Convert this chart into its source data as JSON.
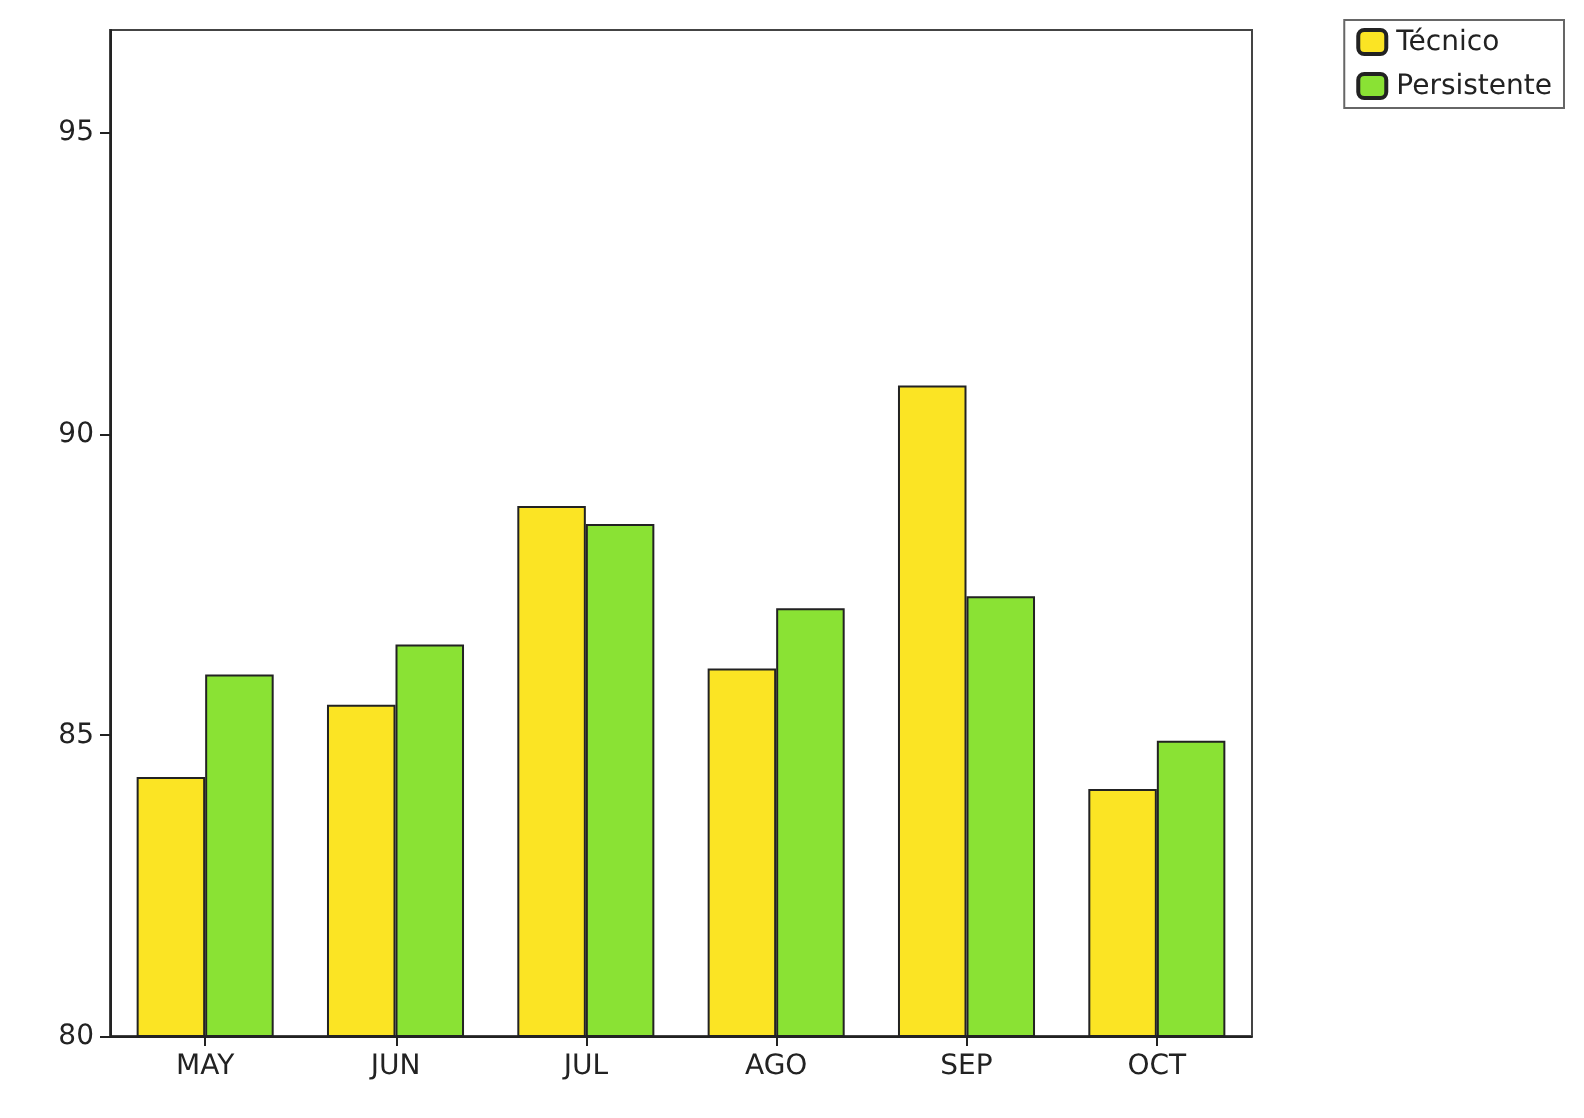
{
  "chart_data": {
    "type": "bar",
    "categories": [
      "MAY",
      "JUN",
      "JUL",
      "AGO",
      "SEP",
      "OCT"
    ],
    "series": [
      {
        "name": "Técnico",
        "color": "#fbe424",
        "values": [
          84.3,
          85.5,
          88.8,
          86.1,
          90.8,
          84.1
        ]
      },
      {
        "name": "Persistente",
        "color": "#8ae234",
        "values": [
          86.0,
          86.5,
          88.5,
          87.1,
          87.3,
          84.9
        ]
      }
    ],
    "ylim": [
      80,
      96.7
    ],
    "yticks": [
      80,
      85,
      90,
      95
    ],
    "grid": false,
    "legend": "top right"
  }
}
